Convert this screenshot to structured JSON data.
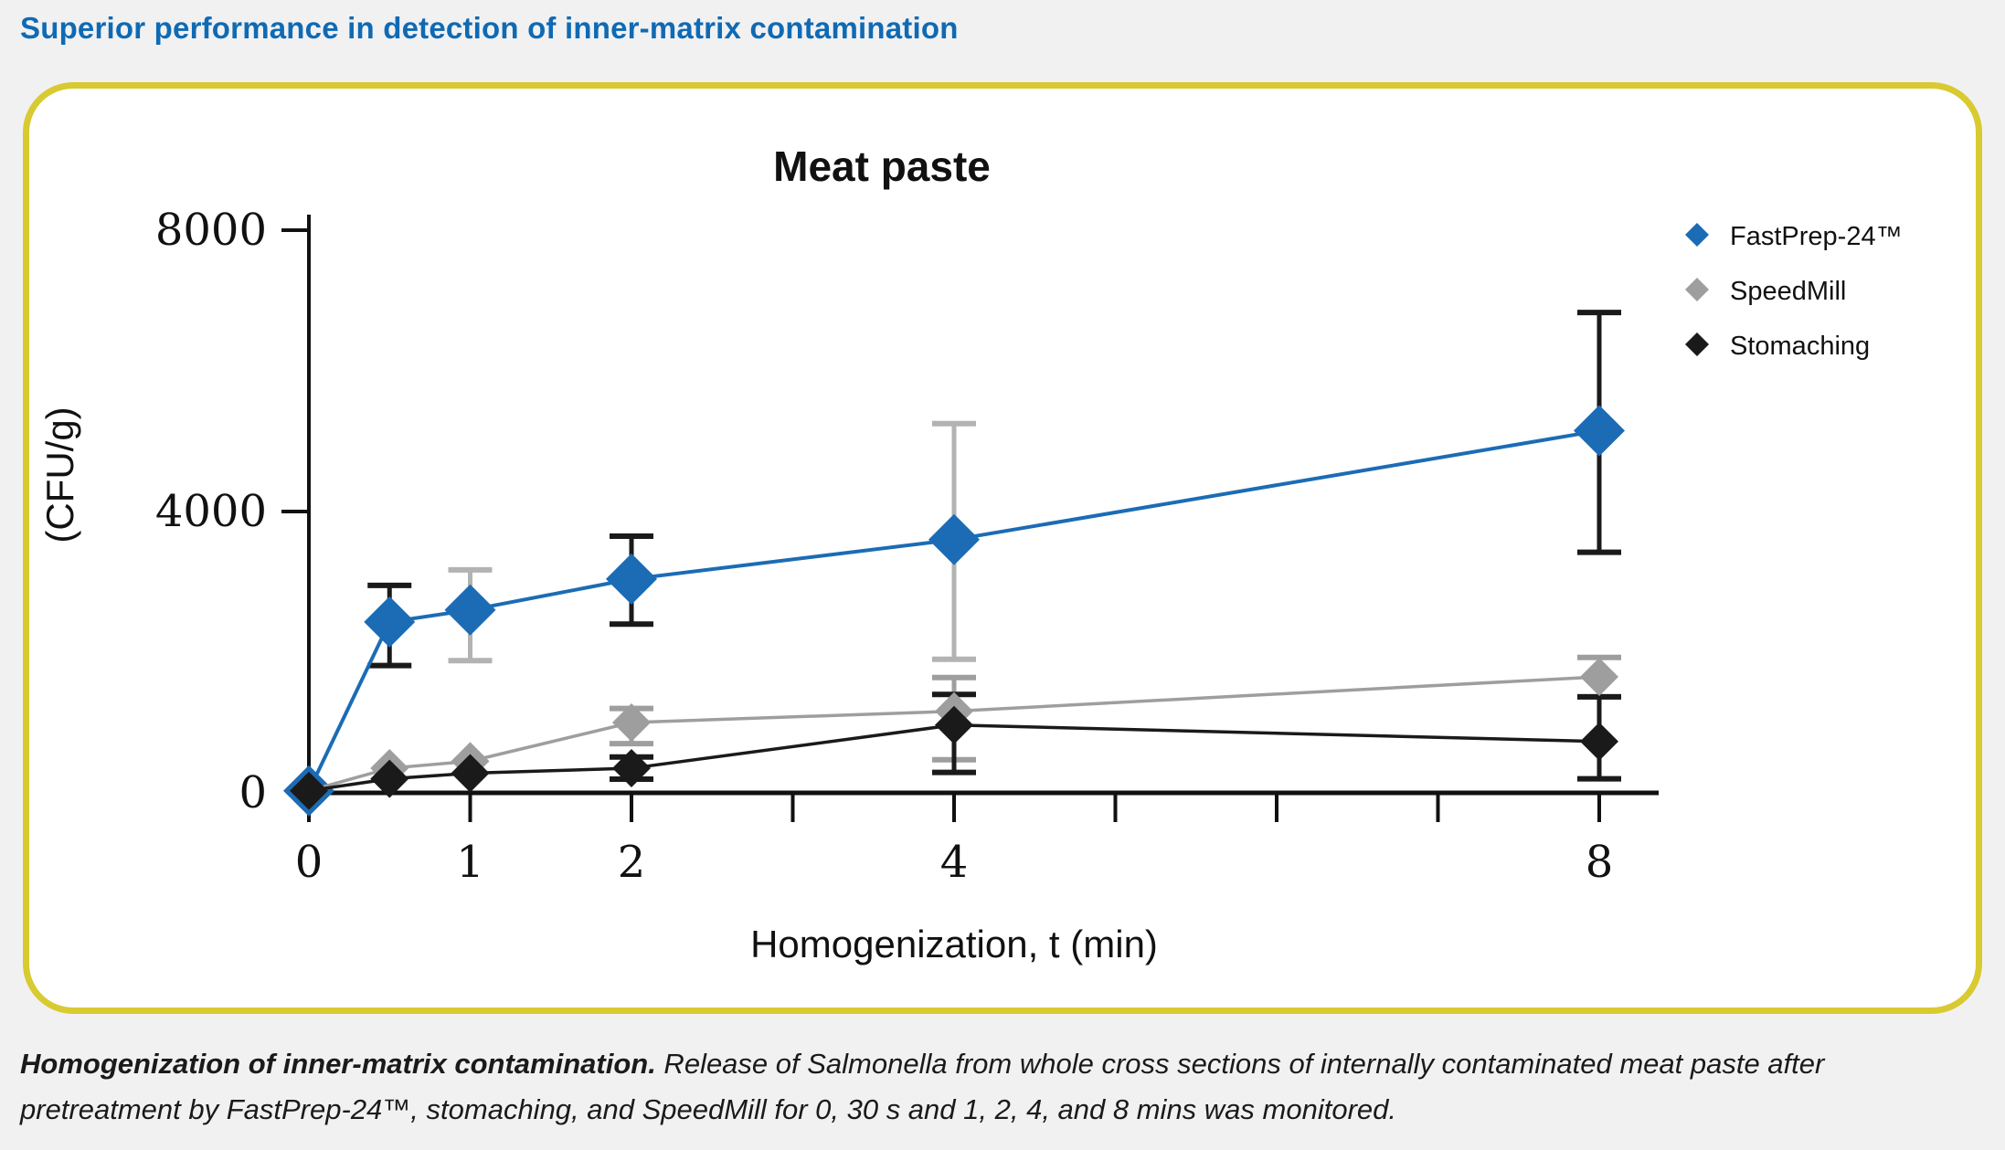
{
  "header": {
    "title": "Superior performance in detection of inner-matrix contamination",
    "color": "#0f6ab4"
  },
  "card": {
    "border_color": "#d8ca30",
    "background": "#ffffff"
  },
  "caption": {
    "lead": "Homogenization of inner-matrix contamination.",
    "body": " Release of Salmonella from whole cross sections of internally contaminated meat paste after pretreatment by FastPrep-24™, stomaching, and SpeedMill for 0, 30 s and 1, 2, 4, and 8 mins was monitored."
  },
  "chart_data": {
    "type": "line",
    "title": "Meat paste",
    "xlabel": "Homogenization, t (min)",
    "ylabel": "(CFU/g)",
    "xlim": [
      0,
      8.3
    ],
    "ylim": [
      0,
      8000
    ],
    "grid": false,
    "legend_position": "top-right",
    "yticks": [
      {
        "v": 0,
        "label": "0"
      },
      {
        "v": 4000,
        "label": "4000"
      },
      {
        "v": 8000,
        "label": "8000"
      }
    ],
    "xticks": [
      {
        "t": 0,
        "label": "0"
      },
      {
        "t": 1,
        "label": "1"
      },
      {
        "t": 2,
        "label": "2"
      },
      {
        "t": 3,
        "label": ""
      },
      {
        "t": 4,
        "label": "4"
      },
      {
        "t": 5,
        "label": ""
      },
      {
        "t": 6,
        "label": ""
      },
      {
        "t": 7,
        "label": ""
      },
      {
        "t": 8,
        "label": "8"
      }
    ],
    "series": [
      {
        "name": "FastPrep-24™",
        "color": "#1b6cb5",
        "marker": "diamond",
        "marker_size": 28,
        "points": [
          {
            "t": 0,
            "v": 30
          },
          {
            "t": 0.5,
            "v": 2430,
            "lo": 1810,
            "hi": 2950,
            "bar": "#1a1a1a"
          },
          {
            "t": 1,
            "v": 2600,
            "lo": 1880,
            "hi": 3170,
            "bar": "#b3b3b3"
          },
          {
            "t": 2,
            "v": 3040,
            "lo": 2400,
            "hi": 3650,
            "bar": "#1a1a1a"
          },
          {
            "t": 4,
            "v": 3600,
            "lo": 1900,
            "hi": 5250,
            "bar": "#b3b3b3"
          },
          {
            "t": 8,
            "v": 5150,
            "lo": 3420,
            "hi": 6830,
            "bar": "#1a1a1a"
          }
        ]
      },
      {
        "name": "SpeedMill",
        "color": "#9e9e9e",
        "marker": "diamond",
        "marker_size": 21,
        "points": [
          {
            "t": 0,
            "v": 30
          },
          {
            "t": 0.5,
            "v": 350
          },
          {
            "t": 1,
            "v": 450
          },
          {
            "t": 2,
            "v": 1000,
            "lo": 700,
            "hi": 1200,
            "bar": "#9e9e9e"
          },
          {
            "t": 4,
            "v": 1160,
            "lo": 470,
            "hi": 1640,
            "bar": "#9e9e9e"
          },
          {
            "t": 8,
            "v": 1650,
            "lo": 1365,
            "hi": 1925,
            "bar": "#9e9e9e"
          }
        ]
      },
      {
        "name": "Stomaching",
        "color": "#1a1a1a",
        "marker": "diamond",
        "marker_size": 21,
        "points": [
          {
            "t": 0,
            "v": 30
          },
          {
            "t": 0.5,
            "v": 200
          },
          {
            "t": 1,
            "v": 280
          },
          {
            "t": 2,
            "v": 350,
            "lo": 195,
            "hi": 510,
            "bar": "#1a1a1a"
          },
          {
            "t": 4,
            "v": 965,
            "lo": 290,
            "hi": 1400,
            "bar": "#1a1a1a"
          },
          {
            "t": 8,
            "v": 730,
            "lo": 200,
            "hi": 1365,
            "bar": "#1a1a1a"
          }
        ]
      }
    ]
  }
}
